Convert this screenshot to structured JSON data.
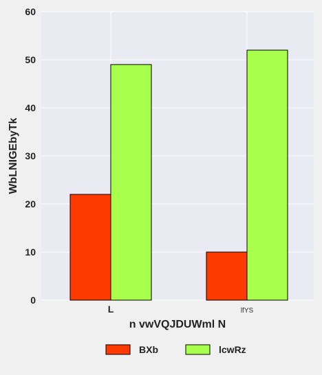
{
  "chart_data": {
    "type": "bar",
    "title": "",
    "xlabel": "n vwVQJDUWml N",
    "ylabel": "WbLNIGEbyTk",
    "categories": [
      "L",
      "lfYS"
    ],
    "series": [
      {
        "name": "BXb",
        "values": [
          22,
          10
        ],
        "color": "#ff3a00"
      },
      {
        "name": "lcwRz",
        "values": [
          49,
          52
        ],
        "color": "#a8ff4c"
      }
    ],
    "ylim": [
      0,
      60
    ],
    "yticks": [
      0,
      10,
      20,
      30,
      40,
      50,
      60
    ],
    "grid": true,
    "legend": "bottom",
    "background_color": "#eaeaf2",
    "page_color": "#f0f0f0"
  }
}
